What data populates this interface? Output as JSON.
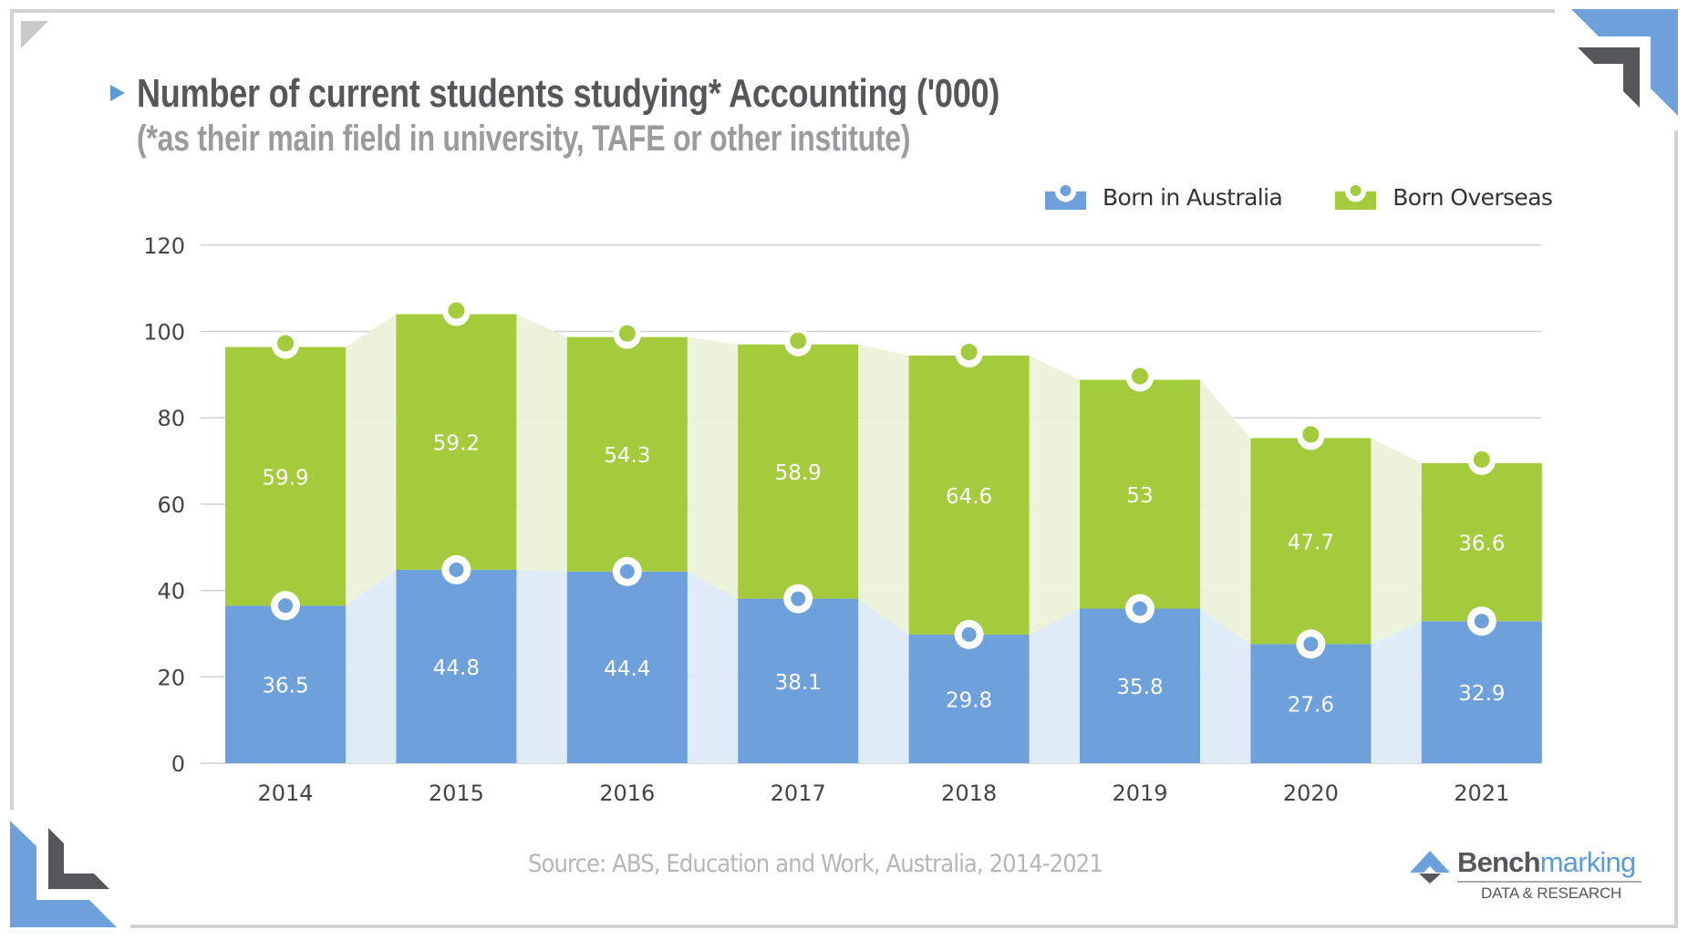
{
  "header": {
    "title": "Number of current students studying* Accounting ('000)",
    "subtitle": "(*as their main field in university, TAFE or other institute)"
  },
  "legend": [
    {
      "label": "Born in Australia",
      "icon": "blue-dot-bar-icon",
      "color": "#6ea0dc"
    },
    {
      "label": "Born Overseas",
      "icon": "green-dot-bar-icon",
      "color": "#a3cb3c"
    }
  ],
  "footer": {
    "source": "Source: ABS, Education and Work, Australia, 2014-2021"
  },
  "logo": {
    "name_bold": "Bench",
    "name_light": "marking",
    "tagline": "DATA & RESEARCH"
  },
  "colors": {
    "australia": "#6ea0dc",
    "australia_area": "#dce9f6",
    "overseas": "#a3cb3c",
    "overseas_area": "#eaf2d6",
    "grid": "#cfd0d2",
    "axis_text": "#444444",
    "frame": "#d2d2d2",
    "accent_blue": "#5b9bd9",
    "accent_dark": "#55575b"
  },
  "chart_data": {
    "type": "bar",
    "stacked": true,
    "title": "Number of current students studying* Accounting ('000)",
    "subtitle": "(*as their main field in university, TAFE or other institute)",
    "xlabel": "",
    "ylabel": "",
    "categories": [
      "2014",
      "2015",
      "2016",
      "2017",
      "2018",
      "2019",
      "2020",
      "2021"
    ],
    "series": [
      {
        "name": "Born in Australia",
        "values": [
          36.5,
          44.8,
          44.4,
          38.1,
          29.8,
          35.8,
          27.6,
          32.9
        ]
      },
      {
        "name": "Born Overseas",
        "values": [
          59.9,
          59.2,
          54.3,
          58.9,
          64.6,
          53,
          47.7,
          36.6
        ]
      }
    ],
    "ylim": [
      0,
      120
    ],
    "yticks": [
      0,
      20,
      40,
      60,
      80,
      100,
      120
    ],
    "grid": true,
    "legend_position": "top-right",
    "data_labels": true,
    "source": "Source: ABS, Education and Work, Australia, 2014-2021"
  }
}
